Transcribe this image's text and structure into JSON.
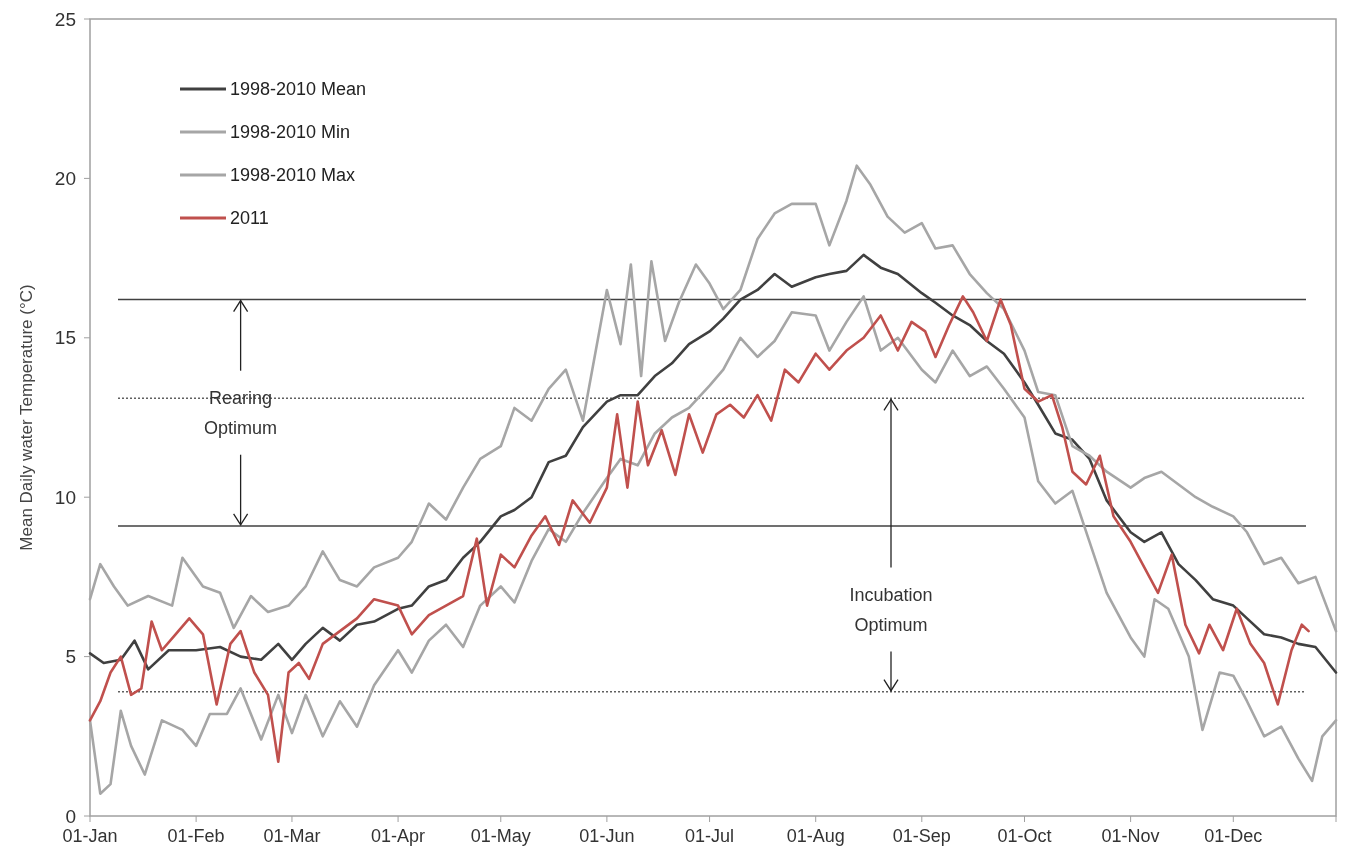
{
  "chart_data": {
    "type": "line",
    "ylabel": "Mean Daily water Temperature (°C)",
    "xlim": [
      "--01-01",
      "--12-31"
    ],
    "ylim": [
      0,
      25
    ],
    "yticks": [
      0,
      5,
      10,
      15,
      20,
      25
    ],
    "xticks": [
      {
        "value": "--01-01",
        "label": "01-Jan"
      },
      {
        "value": "--02-01",
        "label": "01-Feb"
      },
      {
        "value": "--03-01",
        "label": "01-Mar"
      },
      {
        "value": "--04-01",
        "label": "01-Apr"
      },
      {
        "value": "--05-01",
        "label": "01-May"
      },
      {
        "value": "--06-01",
        "label": "01-Jun"
      },
      {
        "value": "--07-01",
        "label": "01-Jul"
      },
      {
        "value": "--08-01",
        "label": "01-Aug"
      },
      {
        "value": "--09-01",
        "label": "01-Sep"
      },
      {
        "value": "--10-01",
        "label": "01-Oct"
      },
      {
        "value": "--11-01",
        "label": "01-Nov"
      },
      {
        "value": "--12-01",
        "label": "01-Dec"
      },
      {
        "value": "--12-31",
        "label": null
      }
    ],
    "legend": "top left",
    "grid": false,
    "line_style": "solid",
    "series": [
      {
        "name": "1998-2010 Mean",
        "color": "#404040",
        "x": [
          "--01-01",
          "--01-05",
          "--01-10",
          "--01-14",
          "--01-18",
          "--01-24",
          "--02-01",
          "--02-08",
          "--02-14",
          "--02-20",
          "--02-25",
          "--03-01",
          "--03-05",
          "--03-10",
          "--03-15",
          "--03-20",
          "--03-25",
          "--04-01",
          "--04-05",
          "--04-10",
          "--04-15",
          "--04-20",
          "--04-25",
          "--05-01",
          "--05-05",
          "--05-10",
          "--05-15",
          "--05-20",
          "--05-25",
          "--06-01",
          "--06-05",
          "--06-10",
          "--06-15",
          "--06-20",
          "--06-25",
          "--07-01",
          "--07-05",
          "--07-10",
          "--07-15",
          "--07-20",
          "--07-25",
          "--08-01",
          "--08-05",
          "--08-10",
          "--08-15",
          "--08-20",
          "--08-25",
          "--09-01",
          "--09-05",
          "--09-10",
          "--09-15",
          "--09-20",
          "--09-25",
          "--10-01",
          "--10-05",
          "--10-10",
          "--10-15",
          "--10-20",
          "--10-25",
          "--11-01",
          "--11-05",
          "--11-10",
          "--11-15",
          "--11-20",
          "--11-25",
          "--12-01",
          "--12-05",
          "--12-10",
          "--12-15",
          "--12-20",
          "--12-25",
          "--12-31"
        ],
        "values": [
          5.1,
          4.8,
          4.9,
          5.5,
          4.6,
          5.2,
          5.2,
          5.3,
          5.0,
          4.9,
          5.4,
          4.9,
          5.4,
          5.9,
          5.5,
          6.0,
          6.1,
          6.5,
          6.6,
          7.2,
          7.4,
          8.1,
          8.6,
          9.4,
          9.6,
          10.0,
          11.1,
          11.3,
          12.2,
          13.0,
          13.2,
          13.2,
          13.8,
          14.2,
          14.8,
          15.2,
          15.6,
          16.2,
          16.5,
          17.0,
          16.6,
          16.9,
          17.0,
          17.1,
          17.6,
          17.2,
          17.0,
          16.4,
          16.1,
          15.7,
          15.4,
          14.9,
          14.5,
          13.6,
          12.9,
          12.0,
          11.8,
          11.2,
          9.9,
          8.9,
          8.6,
          8.9,
          7.9,
          7.4,
          6.8,
          6.6,
          6.2,
          5.7,
          5.6,
          5.4,
          5.3,
          4.5
        ]
      },
      {
        "name": "1998-2010 Min",
        "color": "#a6a6a6",
        "x": [
          "--01-01",
          "--01-04",
          "--01-07",
          "--01-10",
          "--01-13",
          "--01-17",
          "--01-22",
          "--01-28",
          "--02-01",
          "--02-05",
          "--02-10",
          "--02-14",
          "--02-20",
          "--02-25",
          "--03-01",
          "--03-05",
          "--03-10",
          "--03-15",
          "--03-20",
          "--03-25",
          "--04-01",
          "--04-05",
          "--04-10",
          "--04-15",
          "--04-20",
          "--04-25",
          "--05-01",
          "--05-05",
          "--05-10",
          "--05-15",
          "--05-20",
          "--05-25",
          "--06-01",
          "--06-05",
          "--06-10",
          "--06-15",
          "--06-20",
          "--06-25",
          "--07-01",
          "--07-05",
          "--07-10",
          "--07-15",
          "--07-20",
          "--07-25",
          "--08-01",
          "--08-05",
          "--08-10",
          "--08-15",
          "--08-20",
          "--08-25",
          "--09-01",
          "--09-05",
          "--09-10",
          "--09-15",
          "--09-20",
          "--09-25",
          "--10-01",
          "--10-05",
          "--10-10",
          "--10-15",
          "--10-20",
          "--10-25",
          "--11-01",
          "--11-05",
          "--11-08",
          "--11-12",
          "--11-18",
          "--11-22",
          "--11-27",
          "--12-01",
          "--12-05",
          "--12-10",
          "--12-15",
          "--12-20",
          "--12-24",
          "--12-27",
          "--12-31"
        ],
        "values": [
          3.0,
          0.7,
          1.0,
          3.3,
          2.2,
          1.3,
          3.0,
          2.7,
          2.2,
          3.2,
          3.2,
          4.0,
          2.4,
          3.8,
          2.6,
          3.8,
          2.5,
          3.6,
          2.8,
          4.1,
          5.2,
          4.5,
          5.5,
          6.0,
          5.3,
          6.6,
          7.2,
          6.7,
          8.0,
          9.0,
          8.6,
          9.5,
          10.6,
          11.2,
          11.0,
          12.0,
          12.5,
          12.8,
          13.5,
          14.0,
          15.0,
          14.4,
          14.9,
          15.8,
          15.7,
          14.6,
          15.5,
          16.3,
          14.6,
          15.0,
          14.0,
          13.6,
          14.6,
          13.8,
          14.1,
          13.4,
          12.5,
          10.5,
          9.8,
          10.2,
          8.6,
          7.0,
          5.6,
          5.0,
          6.8,
          6.5,
          5.0,
          2.7,
          4.5,
          4.4,
          3.6,
          2.5,
          2.8,
          1.8,
          1.1,
          2.5,
          3.0
        ]
      },
      {
        "name": "1998-2010 Max",
        "color": "#a6a6a6",
        "x": [
          "--01-01",
          "--01-04",
          "--01-08",
          "--01-12",
          "--01-18",
          "--01-25",
          "--01-28",
          "--02-03",
          "--02-08",
          "--02-12",
          "--02-17",
          "--02-22",
          "--02-28",
          "--03-05",
          "--03-10",
          "--03-15",
          "--03-20",
          "--03-25",
          "--04-01",
          "--04-05",
          "--04-10",
          "--04-15",
          "--04-20",
          "--04-25",
          "--05-01",
          "--05-05",
          "--05-10",
          "--05-15",
          "--05-20",
          "--05-25",
          "--06-01",
          "--06-05",
          "--06-08",
          "--06-11",
          "--06-14",
          "--06-18",
          "--06-22",
          "--06-27",
          "--07-01",
          "--07-05",
          "--07-10",
          "--07-15",
          "--07-20",
          "--07-25",
          "--08-01",
          "--08-05",
          "--08-10",
          "--08-13",
          "--08-17",
          "--08-22",
          "--08-27",
          "--09-01",
          "--09-05",
          "--09-10",
          "--09-15",
          "--09-20",
          "--09-25",
          "--10-01",
          "--10-05",
          "--10-10",
          "--10-15",
          "--10-20",
          "--10-25",
          "--11-01",
          "--11-05",
          "--11-10",
          "--11-15",
          "--11-20",
          "--11-25",
          "--12-01",
          "--12-05",
          "--12-10",
          "--12-15",
          "--12-20",
          "--12-25",
          "--12-31"
        ],
        "values": [
          6.8,
          7.9,
          7.2,
          6.6,
          6.9,
          6.6,
          8.1,
          7.2,
          7.0,
          5.9,
          6.9,
          6.4,
          6.6,
          7.2,
          8.3,
          7.4,
          7.2,
          7.8,
          8.1,
          8.6,
          9.8,
          9.3,
          10.3,
          11.2,
          11.6,
          12.8,
          12.4,
          13.4,
          14.0,
          12.4,
          16.5,
          14.8,
          17.3,
          13.8,
          17.4,
          14.9,
          16.1,
          17.3,
          16.7,
          15.9,
          16.5,
          18.1,
          18.9,
          19.2,
          19.2,
          17.9,
          19.3,
          20.4,
          19.8,
          18.8,
          18.3,
          18.6,
          17.8,
          17.9,
          17.0,
          16.4,
          15.9,
          14.6,
          13.3,
          13.2,
          11.6,
          11.3,
          10.8,
          10.3,
          10.6,
          10.8,
          10.4,
          10.0,
          9.7,
          9.4,
          8.9,
          7.9,
          8.1,
          7.3,
          7.5,
          5.8
        ]
      },
      {
        "name": "2011",
        "color": "#c0504d",
        "x": [
          "--01-01",
          "--01-04",
          "--01-07",
          "--01-10",
          "--01-13",
          "--01-16",
          "--01-19",
          "--01-22",
          "--01-26",
          "--01-30",
          "--02-03",
          "--02-07",
          "--02-11",
          "--02-14",
          "--02-18",
          "--02-22",
          "--02-25",
          "--02-28",
          "--03-03",
          "--03-06",
          "--03-10",
          "--03-15",
          "--03-20",
          "--03-25",
          "--04-01",
          "--04-05",
          "--04-10",
          "--04-15",
          "--04-20",
          "--04-24",
          "--04-27",
          "--05-01",
          "--05-05",
          "--05-10",
          "--05-14",
          "--05-18",
          "--05-22",
          "--05-27",
          "--06-01",
          "--06-04",
          "--06-07",
          "--06-10",
          "--06-13",
          "--06-17",
          "--06-21",
          "--06-25",
          "--06-29",
          "--07-03",
          "--07-07",
          "--07-11",
          "--07-15",
          "--07-19",
          "--07-23",
          "--07-27",
          "--08-01",
          "--08-05",
          "--08-10",
          "--08-15",
          "--08-20",
          "--08-25",
          "--08-29",
          "--09-02",
          "--09-05",
          "--09-09",
          "--09-13",
          "--09-16",
          "--09-20",
          "--09-24",
          "--09-27",
          "--10-01",
          "--10-05",
          "--10-09",
          "--10-12",
          "--10-15",
          "--10-19",
          "--10-23",
          "--10-27",
          "--11-01",
          "--11-05",
          "--11-09",
          "--11-13",
          "--11-17",
          "--11-21",
          "--11-24",
          "--11-28",
          "--12-02",
          "--12-06",
          "--12-10",
          "--12-14",
          "--12-18",
          "--12-21",
          "--12-23"
        ],
        "values": [
          3.0,
          3.6,
          4.5,
          5.0,
          3.8,
          4.0,
          6.1,
          5.2,
          5.7,
          6.2,
          5.7,
          3.5,
          5.4,
          5.8,
          4.5,
          3.8,
          1.7,
          4.5,
          4.8,
          4.3,
          5.4,
          5.8,
          6.2,
          6.8,
          6.6,
          5.7,
          6.3,
          6.6,
          6.9,
          8.7,
          6.6,
          8.2,
          7.8,
          8.8,
          9.4,
          8.5,
          9.9,
          9.2,
          10.3,
          12.6,
          10.3,
          13.0,
          11.0,
          12.1,
          10.7,
          12.6,
          11.4,
          12.6,
          12.9,
          12.5,
          13.2,
          12.4,
          14.0,
          13.6,
          14.5,
          14.0,
          14.6,
          15.0,
          15.7,
          14.6,
          15.5,
          15.2,
          14.4,
          15.4,
          16.3,
          15.8,
          14.9,
          16.2,
          15.4,
          13.4,
          13.0,
          13.2,
          12.2,
          10.8,
          10.4,
          11.3,
          9.4,
          8.6,
          7.8,
          7.0,
          8.2,
          6.0,
          5.1,
          6.0,
          5.2,
          6.5,
          5.4,
          4.8,
          3.5,
          5.2,
          6.0,
          5.8
        ]
      }
    ],
    "ref_lines": [
      {
        "axis": "y",
        "value": 16.2,
        "line_style": "solid",
        "color": "#404040"
      },
      {
        "axis": "y",
        "value": 13.1,
        "line_style": "dotted",
        "color": "#606060"
      },
      {
        "axis": "y",
        "value": 9.1,
        "line_style": "solid",
        "color": "#404040"
      },
      {
        "axis": "y",
        "value": 3.9,
        "line_style": "dotted",
        "color": "#606060"
      }
    ],
    "annotations": [
      {
        "text": "Rearing Optimum",
        "x": "--02-14",
        "y": 16.2
      },
      {
        "text": "Incubation Optimum",
        "x": "--08-23",
        "y": 13.1
      }
    ]
  }
}
